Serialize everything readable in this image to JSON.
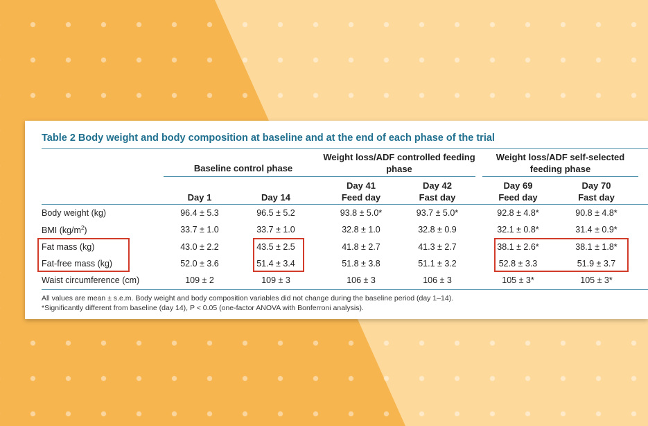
{
  "table": {
    "title": "Table 2  Body weight and body composition at baseline and at the end of each phase of the trial",
    "group_headers": [
      "Baseline control phase",
      "Weight loss/ADF controlled feeding phase",
      "Weight loss/ADF self-selected feeding phase"
    ],
    "columns": [
      {
        "day": "Day 1",
        "sub": ""
      },
      {
        "day": "Day 14",
        "sub": ""
      },
      {
        "day": "Day 41",
        "sub": "Feed day"
      },
      {
        "day": "Day 42",
        "sub": "Fast day"
      },
      {
        "day": "Day 69",
        "sub": "Feed day"
      },
      {
        "day": "Day 70",
        "sub": "Fast day"
      }
    ],
    "rows": [
      {
        "label": "Body weight (kg)",
        "values": [
          "96.4 ± 5.3",
          "96.5 ± 5.2",
          "93.8 ± 5.0*",
          "93.7 ± 5.0*",
          "92.8 ± 4.8*",
          "90.8 ± 4.8*"
        ]
      },
      {
        "label": "BMI (kg/m",
        "label_sup": "2",
        "label_end": ")",
        "values": [
          "33.7 ± 1.0",
          "33.7 ± 1.0",
          "32.8 ± 1.0",
          "32.8 ± 0.9",
          "32.1 ± 0.8*",
          "31.4 ± 0.9*"
        ]
      },
      {
        "label": "Fat mass (kg)",
        "values": [
          "43.0 ± 2.2",
          "43.5 ± 2.5",
          "41.8 ± 2.7",
          "41.3 ± 2.7",
          "38.1 ± 2.6*",
          "38.1 ± 1.8*"
        ]
      },
      {
        "label": "Fat-free mass (kg)",
        "values": [
          "52.0 ± 3.6",
          "51.4 ± 3.4",
          "51.8 ± 3.8",
          "51.1 ± 3.2",
          "52.8 ± 3.3",
          "51.9 ± 3.7"
        ]
      },
      {
        "label": "Waist circumference (cm)",
        "values": [
          "109 ± 2",
          "109 ± 3",
          "106 ± 3",
          "106 ± 3",
          "105 ± 3*",
          "105 ± 3*"
        ]
      }
    ],
    "footnotes": [
      "All values are mean ± s.e.m. Body weight and body composition variables did not change during the baseline period (day 1–14).",
      "*Significantly different from baseline (day 14), P < 0.05 (one-factor ANOVA with Bonferroni analysis)."
    ]
  },
  "colors": {
    "title": "#1f6f8f",
    "highlight": "#d23a2a",
    "bg_dark": "#f6b54f",
    "bg_light": "#fdd99b"
  }
}
